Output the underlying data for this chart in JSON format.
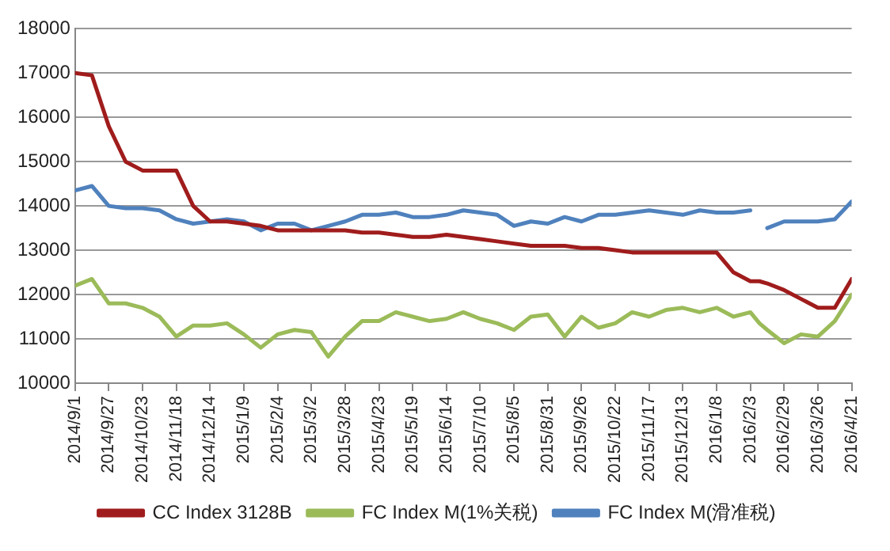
{
  "chart_data": {
    "type": "line",
    "x": [
      "2014-09-01",
      "2014-09-14",
      "2014-09-27",
      "2014-10-10",
      "2014-10-23",
      "2014-11-05",
      "2014-11-18",
      "2014-12-01",
      "2014-12-14",
      "2014-12-27",
      "2015-01-09",
      "2015-01-22",
      "2015-02-04",
      "2015-02-17",
      "2015-03-02",
      "2015-03-15",
      "2015-03-28",
      "2015-04-10",
      "2015-04-23",
      "2015-05-06",
      "2015-05-19",
      "2015-06-01",
      "2015-06-14",
      "2015-06-27",
      "2015-07-10",
      "2015-07-23",
      "2015-08-05",
      "2015-08-18",
      "2015-08-31",
      "2015-09-13",
      "2015-09-26",
      "2015-10-09",
      "2015-10-22",
      "2015-11-04",
      "2015-11-17",
      "2015-11-30",
      "2015-12-13",
      "2015-12-26",
      "2016-01-08",
      "2016-01-21",
      "2016-02-03",
      "2016-02-10",
      "2016-02-16",
      "2016-02-29",
      "2016-03-13",
      "2016-03-26",
      "2016-04-08",
      "2016-04-21"
    ],
    "series": [
      {
        "name": "CC Index 3128B",
        "color": "#a01c1c",
        "values": [
          17000,
          16950,
          15800,
          15000,
          14800,
          14800,
          14800,
          14000,
          13650,
          13650,
          13600,
          13550,
          13450,
          13450,
          13450,
          13450,
          13450,
          13400,
          13400,
          13350,
          13300,
          13300,
          13350,
          13300,
          13250,
          13200,
          13150,
          13100,
          13100,
          13100,
          13050,
          13050,
          13000,
          12950,
          12950,
          12950,
          12950,
          12950,
          12950,
          12500,
          12300,
          12300,
          12250,
          12100,
          11900,
          11700,
          11700,
          12350
        ]
      },
      {
        "name": "FC Index M(1%关税)",
        "color": "#9bbb59",
        "values": [
          12200,
          12350,
          11800,
          11800,
          11700,
          11500,
          11050,
          11300,
          11300,
          11350,
          11100,
          10800,
          11100,
          11200,
          11150,
          10600,
          11050,
          11400,
          11400,
          11600,
          11500,
          11400,
          11450,
          11600,
          11450,
          11350,
          11200,
          11500,
          11550,
          11050,
          11500,
          11250,
          11350,
          11600,
          11500,
          11650,
          11700,
          11600,
          11700,
          11500,
          11600,
          11350,
          11200,
          10900,
          11100,
          11050,
          11400,
          12000
        ]
      },
      {
        "name": "FC Index M(滑准税)",
        "color": "#4f81bd",
        "values": [
          14350,
          14450,
          14000,
          13950,
          13950,
          13900,
          13700,
          13600,
          13650,
          13700,
          13650,
          13450,
          13600,
          13600,
          13450,
          13550,
          13650,
          13800,
          13800,
          13850,
          13750,
          13750,
          13800,
          13900,
          13850,
          13800,
          13550,
          13650,
          13600,
          13750,
          13650,
          13800,
          13800,
          13850,
          13900,
          13850,
          13800,
          13900,
          13850,
          13850,
          13900,
          null,
          13500,
          13650,
          13650,
          13650,
          13700,
          14100
        ]
      }
    ],
    "xlim": [
      "2014-09-01",
      "2016-04-21"
    ],
    "xticks": [
      {
        "value": "2014-09-01",
        "label": "2014/9/1"
      },
      {
        "value": "2014-09-27",
        "label": "2014/9/27"
      },
      {
        "value": "2014-10-23",
        "label": "2014/10/23"
      },
      {
        "value": "2014-11-18",
        "label": "2014/11/18"
      },
      {
        "value": "2014-12-14",
        "label": "2014/12/14"
      },
      {
        "value": "2015-01-09",
        "label": "2015/1/9"
      },
      {
        "value": "2015-02-04",
        "label": "2015/2/4"
      },
      {
        "value": "2015-03-02",
        "label": "2015/3/2"
      },
      {
        "value": "2015-03-28",
        "label": "2015/3/28"
      },
      {
        "value": "2015-04-23",
        "label": "2015/4/23"
      },
      {
        "value": "2015-05-19",
        "label": "2015/5/19"
      },
      {
        "value": "2015-06-14",
        "label": "2015/6/14"
      },
      {
        "value": "2015-07-10",
        "label": "2015/7/10"
      },
      {
        "value": "2015-08-05",
        "label": "2015/8/5"
      },
      {
        "value": "2015-08-31",
        "label": "2015/8/31"
      },
      {
        "value": "2015-09-26",
        "label": "2015/9/26"
      },
      {
        "value": "2015-10-22",
        "label": "2015/10/22"
      },
      {
        "value": "2015-11-17",
        "label": "2015/11/17"
      },
      {
        "value": "2015-12-13",
        "label": "2015/12/13"
      },
      {
        "value": "2016-01-08",
        "label": "2016/1/8"
      },
      {
        "value": "2016-02-03",
        "label": "2016/2/3"
      },
      {
        "value": "2016-02-29",
        "label": "2016/2/29"
      },
      {
        "value": "2016-03-26",
        "label": "2016/3/26"
      },
      {
        "value": "2016-04-21",
        "label": "2016/4/21"
      }
    ],
    "ylim": [
      10000,
      18000
    ],
    "yticks": [
      10000,
      11000,
      12000,
      13000,
      14000,
      15000,
      16000,
      17000,
      18000
    ],
    "grid": "y",
    "legend": "bottom",
    "marker": "none",
    "line_style": "solid"
  }
}
